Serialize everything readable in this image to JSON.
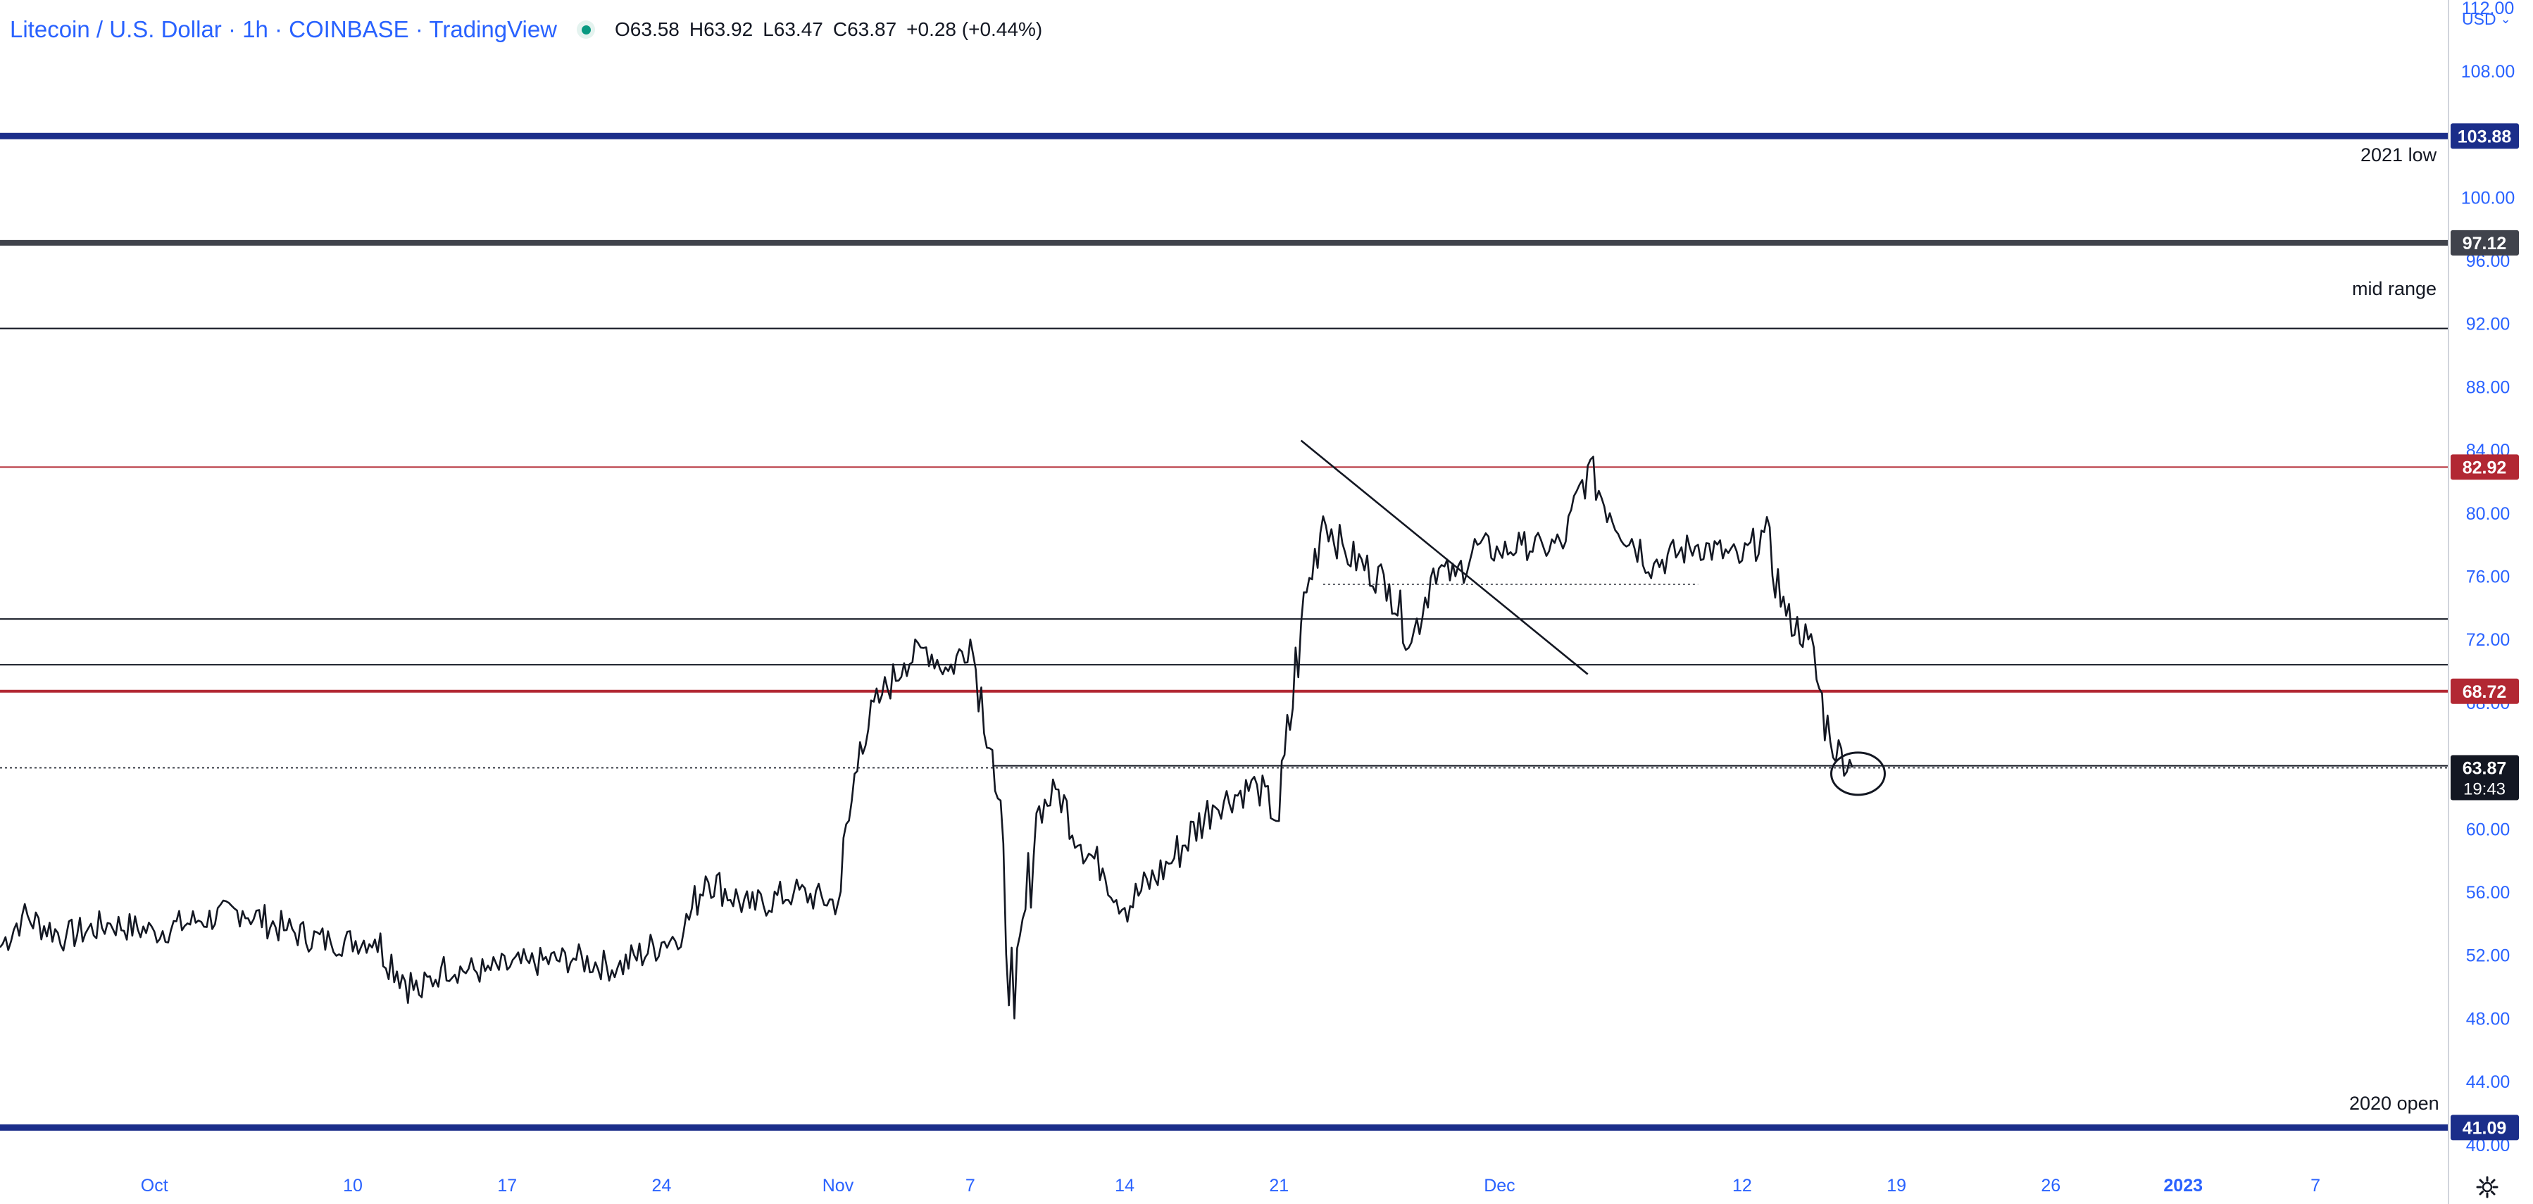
{
  "header": {
    "title": "Litecoin / U.S. Dollar · 1h · COINBASE · TradingView",
    "ohlc": {
      "o_label": "O",
      "o_value": "63.58",
      "h_label": "H",
      "h_value": "63.92",
      "l_label": "L",
      "l_value": "63.47",
      "c_label": "C",
      "c_value": "63.87",
      "change": "+0.28 (+0.44%)"
    },
    "status_color": "#089981"
  },
  "axis": {
    "currency": "USD"
  },
  "colors": {
    "accent": "#2962ff",
    "navy_line": "#1b2e8a",
    "gray_line": "#40434c",
    "red_line": "#b22833",
    "candle": "#131722"
  },
  "horizontal_levels": [
    {
      "value": 103.88,
      "label_text": "103.88",
      "color": "#1b2e8a",
      "note": "2021 low"
    },
    {
      "value": 97.12,
      "label_text": "97.12",
      "color": "#40434c",
      "note": "mid range"
    },
    {
      "value": 82.92,
      "label_text": "82.92",
      "color": "#b22833",
      "note": ""
    },
    {
      "value": 68.72,
      "label_text": "68.72",
      "color": "#b22833",
      "note": ""
    },
    {
      "value": 41.09,
      "label_text": "41.09",
      "color": "#1b2e8a",
      "note": "2020 open"
    }
  ],
  "last_price": {
    "value": 63.87,
    "label_text": "63.87",
    "countdown": "19:43"
  },
  "chart_data": {
    "type": "line",
    "title": "Litecoin / U.S. Dollar · 1h · COINBASE · TradingView",
    "xlabel": "",
    "ylabel": "",
    "y_range": [
      38.7,
      112.5
    ],
    "y_ticks": [
      "112.00",
      "108.00",
      "100.00",
      "96.00",
      "92.00",
      "88.00",
      "84.00",
      "80.00",
      "76.00",
      "72.00",
      "68.00",
      "60.00",
      "56.00",
      "52.00",
      "48.00",
      "44.00",
      "40.00"
    ],
    "x_range": [
      "2022-09-24",
      "2023-01-13"
    ],
    "x_ticks": [
      {
        "label": "Oct",
        "date": "2022-10-01",
        "bold": false
      },
      {
        "label": "10",
        "date": "2022-10-10",
        "bold": false
      },
      {
        "label": "17",
        "date": "2022-10-17",
        "bold": false
      },
      {
        "label": "24",
        "date": "2022-10-24",
        "bold": false
      },
      {
        "label": "Nov",
        "date": "2022-11-01",
        "bold": false
      },
      {
        "label": "7",
        "date": "2022-11-07",
        "bold": false
      },
      {
        "label": "14",
        "date": "2022-11-14",
        "bold": false
      },
      {
        "label": "21",
        "date": "2022-11-21",
        "bold": false
      },
      {
        "label": "Dec",
        "date": "2022-12-01",
        "bold": false
      },
      {
        "label": "12",
        "date": "2022-12-12",
        "bold": false
      },
      {
        "label": "19",
        "date": "2022-12-19",
        "bold": false
      },
      {
        "label": "26",
        "date": "2022-12-26",
        "bold": false
      },
      {
        "label": "2023",
        "date": "2023-01-01",
        "bold": true
      },
      {
        "label": "7",
        "date": "2023-01-07",
        "bold": false
      }
    ],
    "series": [
      {
        "x": [
          "2022-09-24",
          "2022-09-25",
          "2022-09-27",
          "2022-09-29",
          "2022-10-01",
          "2022-10-03",
          "2022-10-05",
          "2022-10-07",
          "2022-10-09",
          "2022-10-11",
          "2022-10-13",
          "2022-10-14",
          "2022-10-16",
          "2022-10-18",
          "2022-10-20",
          "2022-10-22",
          "2022-10-24",
          "2022-10-25",
          "2022-10-26",
          "2022-10-28",
          "2022-10-30",
          "2022-11-01",
          "2022-11-02",
          "2022-11-03",
          "2022-11-04",
          "2022-11-05",
          "2022-11-06",
          "2022-11-07",
          "2022-11-08",
          "2022-11-09",
          "2022-11-10",
          "2022-11-11",
          "2022-11-12",
          "2022-11-13",
          "2022-11-14",
          "2022-11-16",
          "2022-11-18",
          "2022-11-20",
          "2022-11-21",
          "2022-11-22",
          "2022-11-23",
          "2022-11-24",
          "2022-11-26",
          "2022-11-27",
          "2022-11-28",
          "2022-11-29",
          "2022-11-30",
          "2022-12-01",
          "2022-12-02",
          "2022-12-03",
          "2022-12-04",
          "2022-12-05",
          "2022-12-06",
          "2022-12-08",
          "2022-12-10",
          "2022-12-12",
          "2022-12-13",
          "2022-12-14",
          "2022-12-15",
          "2022-12-16",
          "2022-12-17"
        ],
        "y": [
          52.5,
          54.5,
          53.2,
          54.0,
          53.5,
          54.2,
          54.8,
          53.6,
          52.8,
          53.0,
          49.5,
          51.2,
          51.0,
          51.5,
          51.8,
          51.2,
          52.8,
          53.5,
          57.0,
          55.0,
          56.0,
          55.3,
          65.5,
          68.5,
          70.5,
          71.5,
          70.0,
          72.0,
          65.0,
          48.0,
          61.0,
          62.5,
          59.0,
          57.5,
          55.0,
          57.8,
          61.5,
          62.8,
          60.5,
          73.0,
          79.8,
          77.5,
          75.5,
          71.8,
          76.5,
          76.0,
          78.0,
          77.5,
          78.0,
          77.8,
          78.2,
          83.0,
          80.0,
          76.8,
          78.0,
          77.0,
          78.8,
          73.5,
          72.0,
          65.5,
          63.9
        ]
      }
    ],
    "annotations": [
      "2021 low",
      "mid range",
      "2020 open"
    ]
  }
}
